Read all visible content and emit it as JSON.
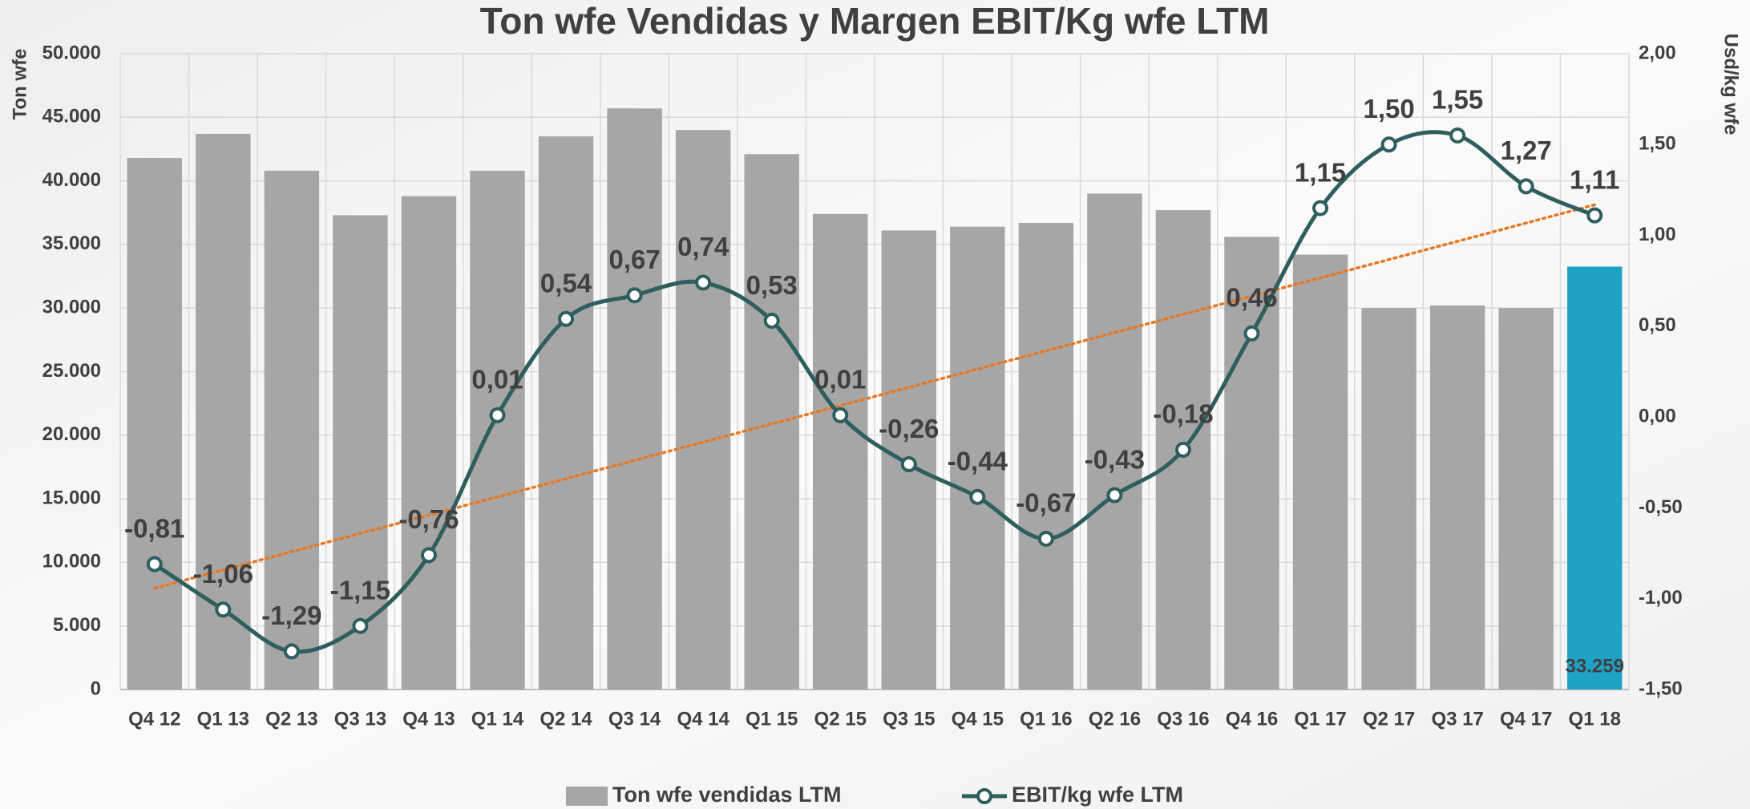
{
  "chart_data": {
    "type": "bar_line",
    "title": "Ton wfe Vendidas y Margen EBIT/Kg wfe LTM",
    "ylabel": "Ton wfe",
    "y2label": "Usd/kg wfe",
    "categories": [
      "Q4 12",
      "Q1 13",
      "Q2 13",
      "Q3 13",
      "Q4 13",
      "Q1 14",
      "Q2 14",
      "Q3 14",
      "Q4 14",
      "Q1 15",
      "Q2 15",
      "Q3 15",
      "Q4 15",
      "Q1 16",
      "Q2 16",
      "Q3 16",
      "Q4 16",
      "Q1 17",
      "Q2 17",
      "Q3 17",
      "Q4 17",
      "Q1 18"
    ],
    "series": [
      {
        "name": "Ton wfe vendidas LTM",
        "type": "bar",
        "color": "#a6a6a6",
        "colors": [
          "#a6a6a6",
          "#a6a6a6",
          "#a6a6a6",
          "#a6a6a6",
          "#a6a6a6",
          "#a6a6a6",
          "#a6a6a6",
          "#a6a6a6",
          "#a6a6a6",
          "#a6a6a6",
          "#a6a6a6",
          "#a6a6a6",
          "#a6a6a6",
          "#a6a6a6",
          "#a6a6a6",
          "#a6a6a6",
          "#a6a6a6",
          "#a6a6a6",
          "#a6a6a6",
          "#a6a6a6",
          "#a6a6a6",
          "#1fa3c4"
        ],
        "values": [
          41800,
          43700,
          40800,
          37300,
          38800,
          40800,
          43500,
          45700,
          44000,
          42100,
          37400,
          36100,
          36400,
          36700,
          39000,
          37700,
          35600,
          34200,
          30000,
          30200,
          30000,
          33259
        ],
        "value_labels": [
          null,
          null,
          null,
          null,
          null,
          null,
          null,
          null,
          null,
          null,
          null,
          null,
          null,
          null,
          null,
          null,
          null,
          null,
          null,
          null,
          null,
          "33.259"
        ]
      },
      {
        "name": "EBIT/kg wfe LTM",
        "type": "line",
        "axis": "y2",
        "color": "#2e5e60",
        "values": [
          -0.81,
          -1.06,
          -1.29,
          -1.15,
          -0.76,
          0.01,
          0.54,
          0.67,
          0.74,
          0.53,
          0.01,
          -0.26,
          -0.44,
          -0.67,
          -0.43,
          -0.18,
          0.46,
          1.15,
          1.5,
          1.55,
          1.27,
          1.11
        ],
        "value_labels": [
          "-0,81",
          "-1,06",
          "-1,29",
          "-1,15",
          "-0,76",
          "0,01",
          "0,54",
          "0,67",
          "0,74",
          "0,53",
          "0,01",
          "-0,26",
          "-0,44",
          "-0,67",
          "-0,43",
          "-0,18",
          "0,46",
          "1,15",
          "1,50",
          "1,55",
          "1,27",
          "1,11"
        ]
      }
    ],
    "trendline": {
      "series": 1,
      "color": "#e87722"
    },
    "ylim": [
      0,
      50000
    ],
    "yticks": [
      0,
      {
        "value": 5000,
        "label": "5.000"
      },
      {
        "value": 10000,
        "label": "10.000"
      },
      {
        "value": 15000,
        "label": "15.000"
      },
      {
        "value": 20000,
        "label": "20.000"
      },
      {
        "value": 25000,
        "label": "25.000"
      },
      {
        "value": 30000,
        "label": "30.000"
      },
      {
        "value": 35000,
        "label": "35.000"
      },
      {
        "value": 40000,
        "label": "40.000"
      },
      {
        "value": 45000,
        "label": "45.000"
      },
      {
        "value": 50000,
        "label": "50.000"
      }
    ],
    "y2lim": [
      -1.5,
      2
    ],
    "y2ticks": [
      {
        "value": -1.5,
        "label": "-1,50"
      },
      {
        "value": -1,
        "label": "-1,00"
      },
      {
        "value": -0.5,
        "label": "-0,50"
      },
      {
        "value": 0,
        "label": "0,00"
      },
      {
        "value": 0.5,
        "label": "0,50"
      },
      {
        "value": 1,
        "label": "1,00"
      },
      {
        "value": 1.5,
        "label": "1,50"
      },
      {
        "value": 2,
        "label": "2,00"
      }
    ],
    "grid": true,
    "legend": "bottom"
  }
}
